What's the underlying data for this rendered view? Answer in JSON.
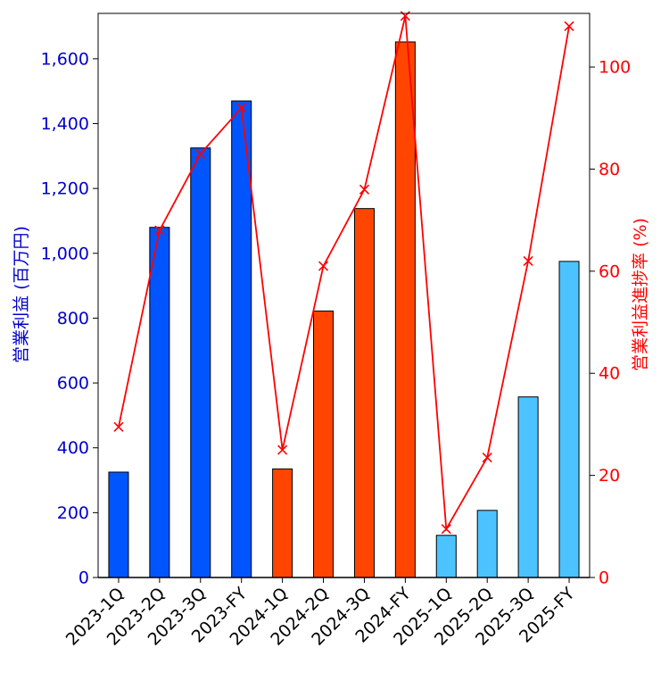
{
  "chart_data": {
    "type": "bar",
    "categories": [
      "2023-1Q",
      "2023-2Q",
      "2023-3Q",
      "2023-FY",
      "2024-1Q",
      "2024-2Q",
      "2024-3Q",
      "2024-FY",
      "2025-1Q",
      "2025-2Q",
      "2025-3Q",
      "2025-FY"
    ],
    "series": [
      {
        "values": [
          325,
          1080,
          1325,
          1470,
          335,
          822,
          1138,
          1652,
          130,
          207,
          557,
          975
        ],
        "colors": [
          "#0055ff",
          "#0055ff",
          "#0055ff",
          "#0055ff",
          "#ff4500",
          "#ff4500",
          "#ff4500",
          "#ff4500",
          "#4cc3ff",
          "#4cc3ff",
          "#4cc3ff",
          "#4cc3ff"
        ]
      },
      {
        "type": "line",
        "marker": "x",
        "axis": "right",
        "color": "#ff0000",
        "values": [
          29.5,
          68,
          83,
          92,
          25,
          61,
          76,
          110,
          9.5,
          23.5,
          62,
          108
        ]
      }
    ],
    "ylabel": "営業利益 (百万円)",
    "y2label": "営業利益進捗率 (%)",
    "ylim": [
      0,
      1740
    ],
    "y2lim": [
      0,
      110.5
    ],
    "yticks": [
      0,
      200,
      400,
      600,
      800,
      1000,
      1200,
      1400,
      1600
    ],
    "ytick_labels": [
      "0",
      "200",
      "400",
      "600",
      "800",
      "1,000",
      "1,200",
      "1,400",
      "1,600"
    ],
    "y2ticks": [
      0,
      20,
      40,
      60,
      80,
      100
    ],
    "ytick_color": "#0000cc",
    "y2tick_color": "#ff0000",
    "grid": false,
    "legend": "none"
  }
}
